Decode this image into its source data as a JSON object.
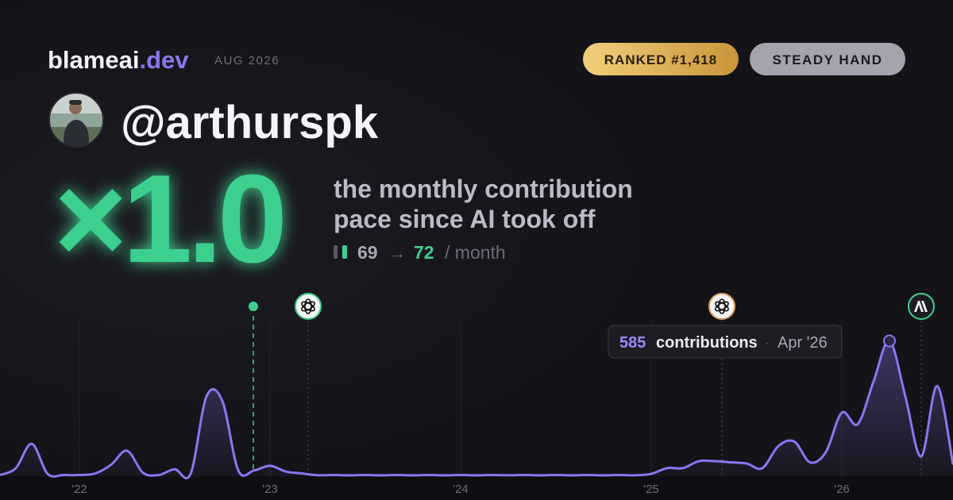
{
  "header": {
    "brand": "blameai",
    "brand_suffix": ".dev",
    "period": "AUG 2026",
    "badges": [
      "RANKED #1,418",
      "STEADY HAND"
    ]
  },
  "profile": {
    "handle": "@arthurspk"
  },
  "headline": {
    "multiplier": "×1.0",
    "caption_lines": [
      "the monthly contribution",
      "pace since AI took off"
    ],
    "before": "69",
    "arrow": "→",
    "after": "72",
    "unit": "/ month"
  },
  "chart_data": {
    "type": "line",
    "categories": [
      null,
      null,
      null,
      null,
      null,
      "'22",
      null,
      null,
      null,
      null,
      null,
      null,
      null,
      null,
      null,
      null,
      null,
      "'23",
      null,
      null,
      null,
      null,
      null,
      null,
      null,
      null,
      null,
      null,
      null,
      "'24",
      null,
      null,
      null,
      null,
      null,
      null,
      null,
      null,
      null,
      null,
      null,
      "'25",
      null,
      null,
      null,
      null,
      null,
      null,
      null,
      null,
      null,
      null,
      null,
      "'26",
      null,
      null,
      null,
      null,
      null,
      null,
      null
    ],
    "series": [
      {
        "name": "contributions",
        "color": "#8b76f0",
        "values": [
          5,
          35,
          140,
          10,
          5,
          5,
          12,
          50,
          110,
          15,
          5,
          30,
          10,
          345,
          325,
          25,
          25,
          45,
          20,
          12,
          4,
          5,
          4,
          5,
          4,
          5,
          4,
          5,
          4,
          5,
          4,
          5,
          4,
          5,
          4,
          5,
          4,
          5,
          4,
          5,
          4,
          10,
          35,
          35,
          65,
          65,
          60,
          55,
          35,
          130,
          150,
          60,
          105,
          275,
          225,
          410,
          585,
          345,
          85,
          390,
          50
        ]
      }
    ],
    "ylim": [
      0,
      700
    ],
    "tooltip": {
      "label": "contributions",
      "date": "Apr '26"
    }
  }
}
